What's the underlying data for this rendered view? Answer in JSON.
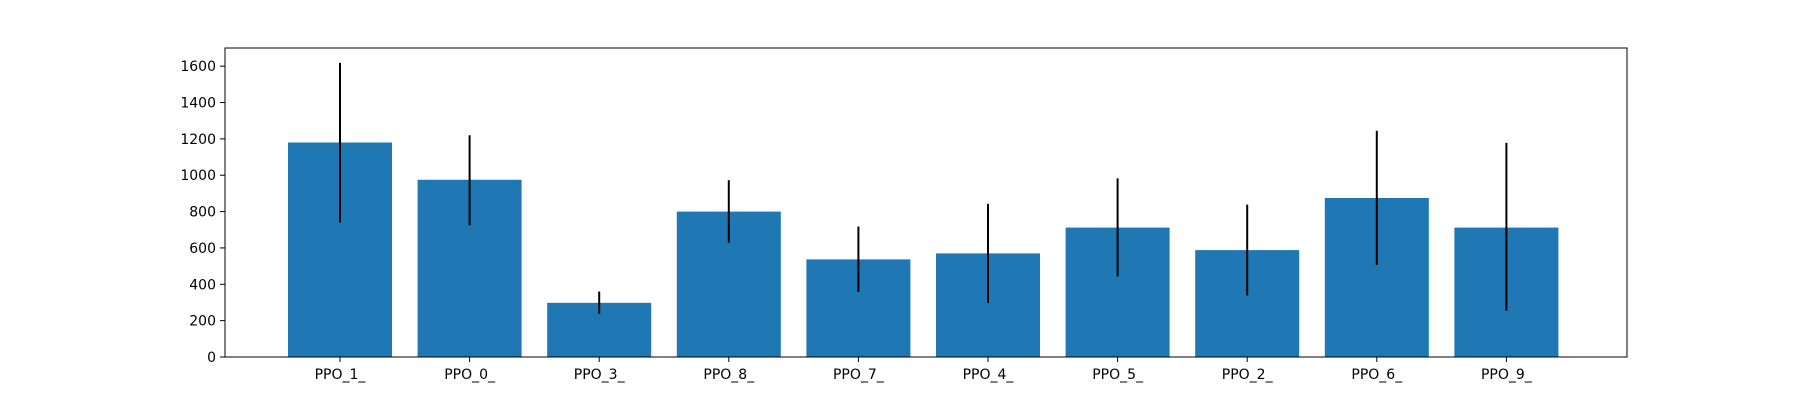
{
  "chart_data": {
    "type": "bar",
    "categories": [
      "PPO_1_",
      "PPO_0_",
      "PPO_3_",
      "PPO_8_",
      "PPO_7_",
      "PPO_4_",
      "PPO_5_",
      "PPO_2_",
      "PPO_6_",
      "PPO_9_"
    ],
    "values": [
      1180,
      975,
      298,
      800,
      537,
      570,
      712,
      588,
      875,
      712
    ],
    "error_low": [
      740,
      725,
      237,
      628,
      358,
      297,
      443,
      338,
      507,
      255
    ],
    "error_high": [
      1618,
      1220,
      360,
      973,
      718,
      843,
      983,
      838,
      1245,
      1178
    ],
    "ylim": [
      0,
      1700
    ],
    "yticks": [
      0,
      200,
      400,
      600,
      800,
      1000,
      1200,
      1400,
      1600
    ],
    "title": "",
    "xlabel": "",
    "ylabel": "",
    "grid": false,
    "bar_color": "#1f77b4",
    "error_color": "#000000"
  }
}
